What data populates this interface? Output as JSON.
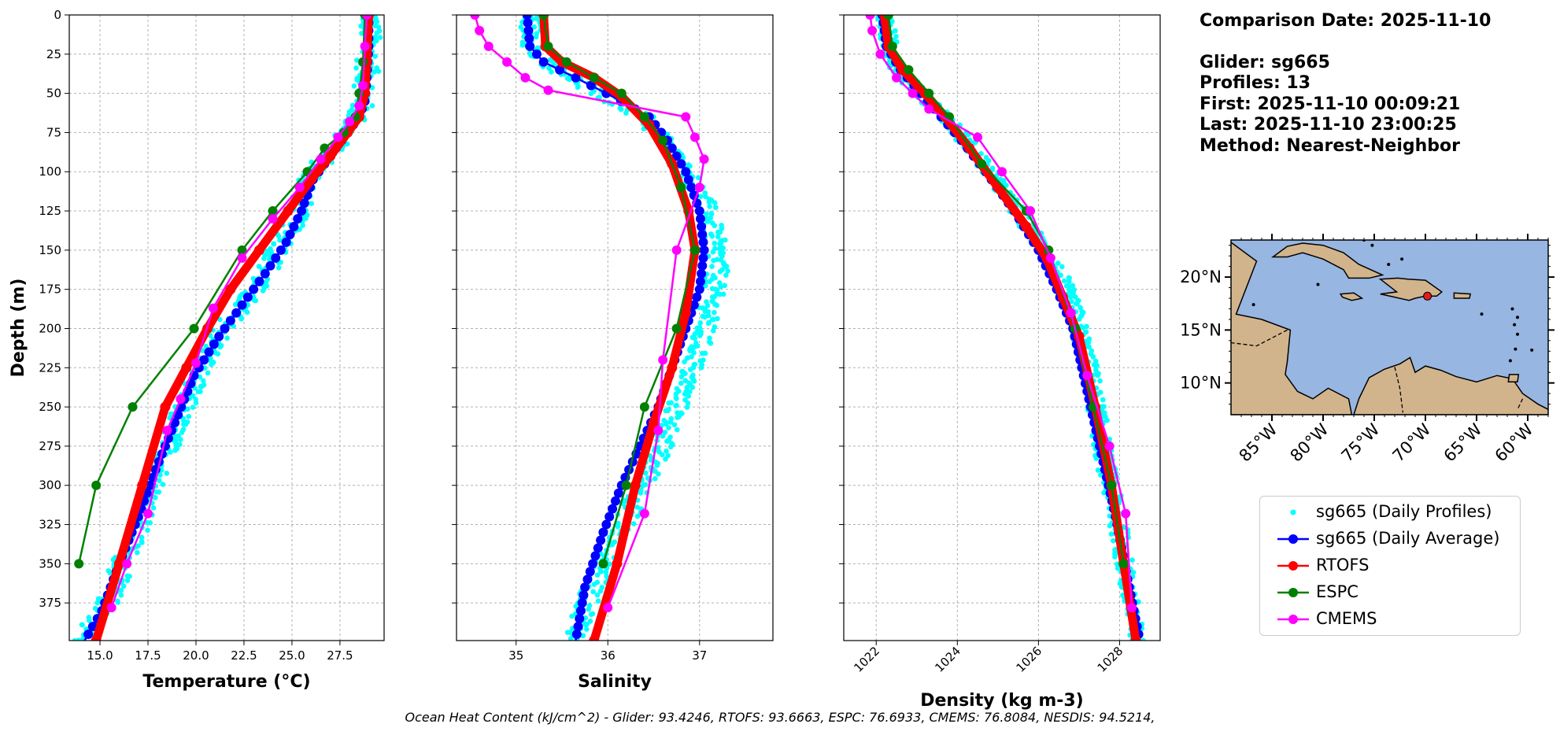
{
  "info": {
    "comparison_date": "Comparison Date: 2025-11-10",
    "glider": "Glider: sg665",
    "profiles": "Profiles: 13",
    "first": "First: 2025-11-10 00:09:21",
    "last": "Last: 2025-11-10 23:00:25",
    "method": "Method: Nearest-Neighbor"
  },
  "footer": "Ocean Heat Content (kJ/cm^2) - Glider: 93.4246,  RTOFS: 93.6663,  ESPC: 76.6933,  CMEMS: 76.8084,  NESDIS: 94.5214,",
  "legend": [
    {
      "name": "sg665 (Daily Profiles)",
      "color": "#00ffff",
      "style": "dots"
    },
    {
      "name": "sg665 (Daily Average)",
      "color": "#0000ff",
      "style": "line-marker"
    },
    {
      "name": "RTOFS",
      "color": "#ff0000",
      "style": "line-marker"
    },
    {
      "name": "ESPC",
      "color": "#008000",
      "style": "line-marker"
    },
    {
      "name": "CMEMS",
      "color": "#ff00ff",
      "style": "line-marker"
    }
  ],
  "map": {
    "lat_ticks": [
      "20°N",
      "15°N",
      "10°N"
    ],
    "lat_values": [
      20,
      15,
      10
    ],
    "lon_ticks": [
      "85°W",
      "80°W",
      "75°W",
      "70°W",
      "65°W",
      "60°W"
    ],
    "lon_values": [
      -85,
      -80,
      -75,
      -70,
      -65,
      -60
    ],
    "lon_range": [
      -89,
      -58
    ],
    "lat_range": [
      7,
      23.5
    ],
    "glider_location": [
      -69.8,
      18.2
    ],
    "ocean_color": "#97b6e1",
    "land_color": "#d2b48c",
    "marker_color": "#e41a1c"
  },
  "chart_data": [
    {
      "type": "line",
      "xlabel": "Temperature (°C)",
      "ylabel": "Depth (m)",
      "xlim": [
        13.4,
        29.8
      ],
      "ylim": [
        399,
        0
      ],
      "xticks": [
        15,
        17.5,
        20,
        22.5,
        25,
        27.5
      ],
      "xtick_labels": [
        "15.0",
        "17.5",
        "20.0",
        "22.5",
        "25.0",
        "27.5"
      ],
      "yticks": [
        0,
        25,
        50,
        75,
        100,
        125,
        150,
        175,
        200,
        225,
        250,
        275,
        300,
        325,
        350,
        375
      ],
      "grid": true,
      "profile_cloud": {
        "x": [
          29.1,
          29.0,
          28.9,
          28.7,
          28.4,
          27.8,
          26.8,
          25.9,
          25.3,
          24.6,
          23.6,
          22.4,
          21.2,
          20.0,
          19.0,
          18.1,
          17.2,
          16.2,
          15.2,
          14.0
        ],
        "y": [
          0,
          20,
          40,
          55,
          65,
          75,
          90,
          105,
          125,
          145,
          165,
          185,
          205,
          230,
          260,
          290,
          320,
          350,
          380,
          399
        ],
        "spread": 0.6
      },
      "series": [
        {
          "name": "sg665 (Daily Average)",
          "color": "#0000ff",
          "x": [
            29.0,
            29.0,
            28.9,
            28.8,
            28.5,
            27.9,
            27.0,
            26.1,
            25.5,
            24.7,
            23.6,
            22.4,
            21.2,
            19.9,
            18.9,
            17.9,
            17.0,
            16.0,
            15.1,
            14.2
          ],
          "y": [
            0,
            20,
            40,
            55,
            65,
            75,
            90,
            105,
            125,
            145,
            165,
            185,
            205,
            230,
            260,
            290,
            320,
            350,
            380,
            399
          ]
        },
        {
          "name": "RTOFS",
          "color": "#ff0000",
          "x": [
            29.0,
            28.9,
            28.8,
            28.5,
            27.9,
            27.0,
            26.0,
            24.8,
            23.3,
            21.8,
            20.6,
            19.5,
            18.4,
            17.2,
            16.0,
            14.8
          ],
          "y": [
            0,
            30,
            50,
            65,
            75,
            90,
            105,
            125,
            150,
            175,
            200,
            225,
            250,
            300,
            350,
            399
          ]
        },
        {
          "name": "ESPC",
          "color": "#008000",
          "x": [
            28.8,
            28.7,
            28.5,
            28.3,
            27.7,
            26.7,
            25.8,
            24.0,
            22.4,
            19.9,
            16.7,
            14.8,
            13.9
          ],
          "y": [
            0,
            30,
            50,
            65,
            75,
            85,
            100,
            125,
            150,
            200,
            250,
            300,
            350
          ]
        },
        {
          "name": "CMEMS",
          "color": "#ff00ff",
          "x": [
            28.9,
            28.8,
            28.7,
            28.5,
            28.0,
            27.4,
            26.5,
            25.4,
            24.0,
            22.4,
            20.9,
            20.0,
            19.2,
            18.5,
            17.5,
            16.4,
            15.6
          ],
          "y": [
            0,
            20,
            45,
            58,
            68,
            78,
            92,
            110,
            130,
            155,
            187,
            222,
            245,
            265,
            318,
            350,
            378
          ]
        }
      ]
    },
    {
      "type": "line",
      "xlabel": "Salinity",
      "ylabel": "",
      "xlim": [
        34.35,
        37.8
      ],
      "ylim": [
        399,
        0
      ],
      "xticks": [
        35,
        36,
        37
      ],
      "xtick_labels": [
        "35",
        "36",
        "37"
      ],
      "yticks": [
        0,
        25,
        50,
        75,
        100,
        125,
        150,
        175,
        200,
        225,
        250,
        275,
        300,
        325,
        350,
        375
      ],
      "grid": true,
      "profile_cloud": {
        "x": [
          35.15,
          35.2,
          35.4,
          35.9,
          36.4,
          36.6,
          36.85,
          37.05,
          37.15,
          37.2,
          37.1,
          36.95,
          36.75,
          36.55,
          36.3,
          36.05,
          35.8,
          35.65
        ],
        "y": [
          0,
          25,
          35,
          50,
          65,
          80,
          100,
          120,
          140,
          160,
          190,
          220,
          250,
          280,
          310,
          340,
          370,
          399
        ],
        "spread": 0.12
      },
      "series": [
        {
          "name": "sg665 (Daily Average)",
          "color": "#0000ff",
          "x": [
            35.12,
            35.15,
            35.3,
            35.65,
            36.05,
            36.45,
            36.65,
            36.85,
            37.0,
            37.05,
            37.0,
            36.85,
            36.7,
            36.55,
            36.35,
            36.15,
            35.95,
            35.75,
            35.65
          ],
          "y": [
            0,
            20,
            30,
            40,
            52,
            65,
            80,
            100,
            125,
            150,
            175,
            200,
            225,
            250,
            275,
            300,
            330,
            365,
            399
          ]
        },
        {
          "name": "RTOFS",
          "color": "#ff0000",
          "x": [
            35.3,
            35.32,
            35.5,
            35.85,
            36.15,
            36.45,
            36.7,
            36.88,
            36.95,
            36.85,
            36.7,
            36.5,
            36.3,
            36.1,
            35.85
          ],
          "y": [
            0,
            20,
            30,
            40,
            52,
            70,
            95,
            125,
            150,
            190,
            225,
            260,
            300,
            350,
            399
          ]
        },
        {
          "name": "ESPC",
          "color": "#008000",
          "x": [
            35.3,
            35.35,
            35.55,
            35.85,
            36.15,
            36.4,
            36.6,
            36.8,
            36.95,
            36.75,
            36.4,
            36.2,
            35.95
          ],
          "y": [
            0,
            20,
            30,
            40,
            50,
            65,
            80,
            110,
            150,
            200,
            250,
            300,
            350
          ]
        },
        {
          "name": "CMEMS",
          "color": "#ff00ff",
          "x": [
            34.55,
            34.6,
            34.7,
            34.9,
            35.1,
            35.35,
            36.85,
            36.95,
            37.05,
            37.0,
            36.75,
            36.6,
            36.55,
            36.4,
            36.0
          ],
          "y": [
            0,
            10,
            20,
            30,
            40,
            48,
            65,
            78,
            92,
            110,
            150,
            220,
            265,
            318,
            378
          ]
        }
      ]
    },
    {
      "type": "line",
      "xlabel": "Density (kg m-3)",
      "ylabel": "",
      "xlim": [
        1021.2,
        1029.0
      ],
      "ylim": [
        399,
        0
      ],
      "xticks": [
        1022,
        1024,
        1026,
        1028
      ],
      "xtick_labels": [
        "1022",
        "1024",
        "1026",
        "1028"
      ],
      "yticks": [
        0,
        25,
        50,
        75,
        100,
        125,
        150,
        175,
        200,
        225,
        250,
        275,
        300,
        325,
        350,
        375
      ],
      "grid": true,
      "profile_cloud": {
        "x": [
          1022.2,
          1022.35,
          1022.7,
          1023.3,
          1023.9,
          1024.5,
          1025.2,
          1025.9,
          1026.5,
          1026.9,
          1027.3,
          1027.6,
          1028.0,
          1028.4
        ],
        "y": [
          0,
          25,
          40,
          55,
          70,
          90,
          115,
          140,
          165,
          190,
          230,
          280,
          330,
          399
        ],
        "spread": 0.22
      },
      "series": [
        {
          "name": "sg665 (Daily Average)",
          "color": "#0000ff",
          "x": [
            1022.15,
            1022.25,
            1022.6,
            1023.1,
            1023.6,
            1024.1,
            1024.7,
            1025.4,
            1026.0,
            1026.45,
            1026.85,
            1027.2,
            1027.55,
            1027.9,
            1028.2,
            1028.5
          ],
          "y": [
            0,
            20,
            35,
            50,
            65,
            80,
            100,
            125,
            150,
            175,
            200,
            240,
            280,
            320,
            360,
            399
          ]
        },
        {
          "name": "RTOFS",
          "color": "#ff0000",
          "x": [
            1022.2,
            1022.3,
            1022.65,
            1023.2,
            1023.7,
            1024.3,
            1025.0,
            1025.7,
            1026.2,
            1026.6,
            1027.0,
            1027.4,
            1027.8,
            1028.1,
            1028.4
          ],
          "y": [
            0,
            20,
            35,
            50,
            65,
            85,
            110,
            135,
            155,
            180,
            205,
            250,
            300,
            350,
            399
          ]
        },
        {
          "name": "ESPC",
          "color": "#008000",
          "x": [
            1022.3,
            1022.4,
            1022.8,
            1023.3,
            1023.8,
            1024.6,
            1025.7,
            1026.25,
            1026.9,
            1027.35,
            1027.8,
            1028.1
          ],
          "y": [
            0,
            20,
            35,
            50,
            65,
            95,
            125,
            150,
            200,
            250,
            300,
            350
          ]
        },
        {
          "name": "CMEMS",
          "color": "#ff00ff",
          "x": [
            1021.85,
            1021.9,
            1022.1,
            1022.5,
            1022.9,
            1023.3,
            1024.5,
            1025.1,
            1025.8,
            1026.3,
            1026.8,
            1027.2,
            1027.75,
            1028.15,
            1028.3
          ],
          "y": [
            0,
            10,
            25,
            40,
            50,
            60,
            78,
            100,
            125,
            155,
            190,
            230,
            275,
            318,
            378
          ]
        }
      ]
    }
  ]
}
